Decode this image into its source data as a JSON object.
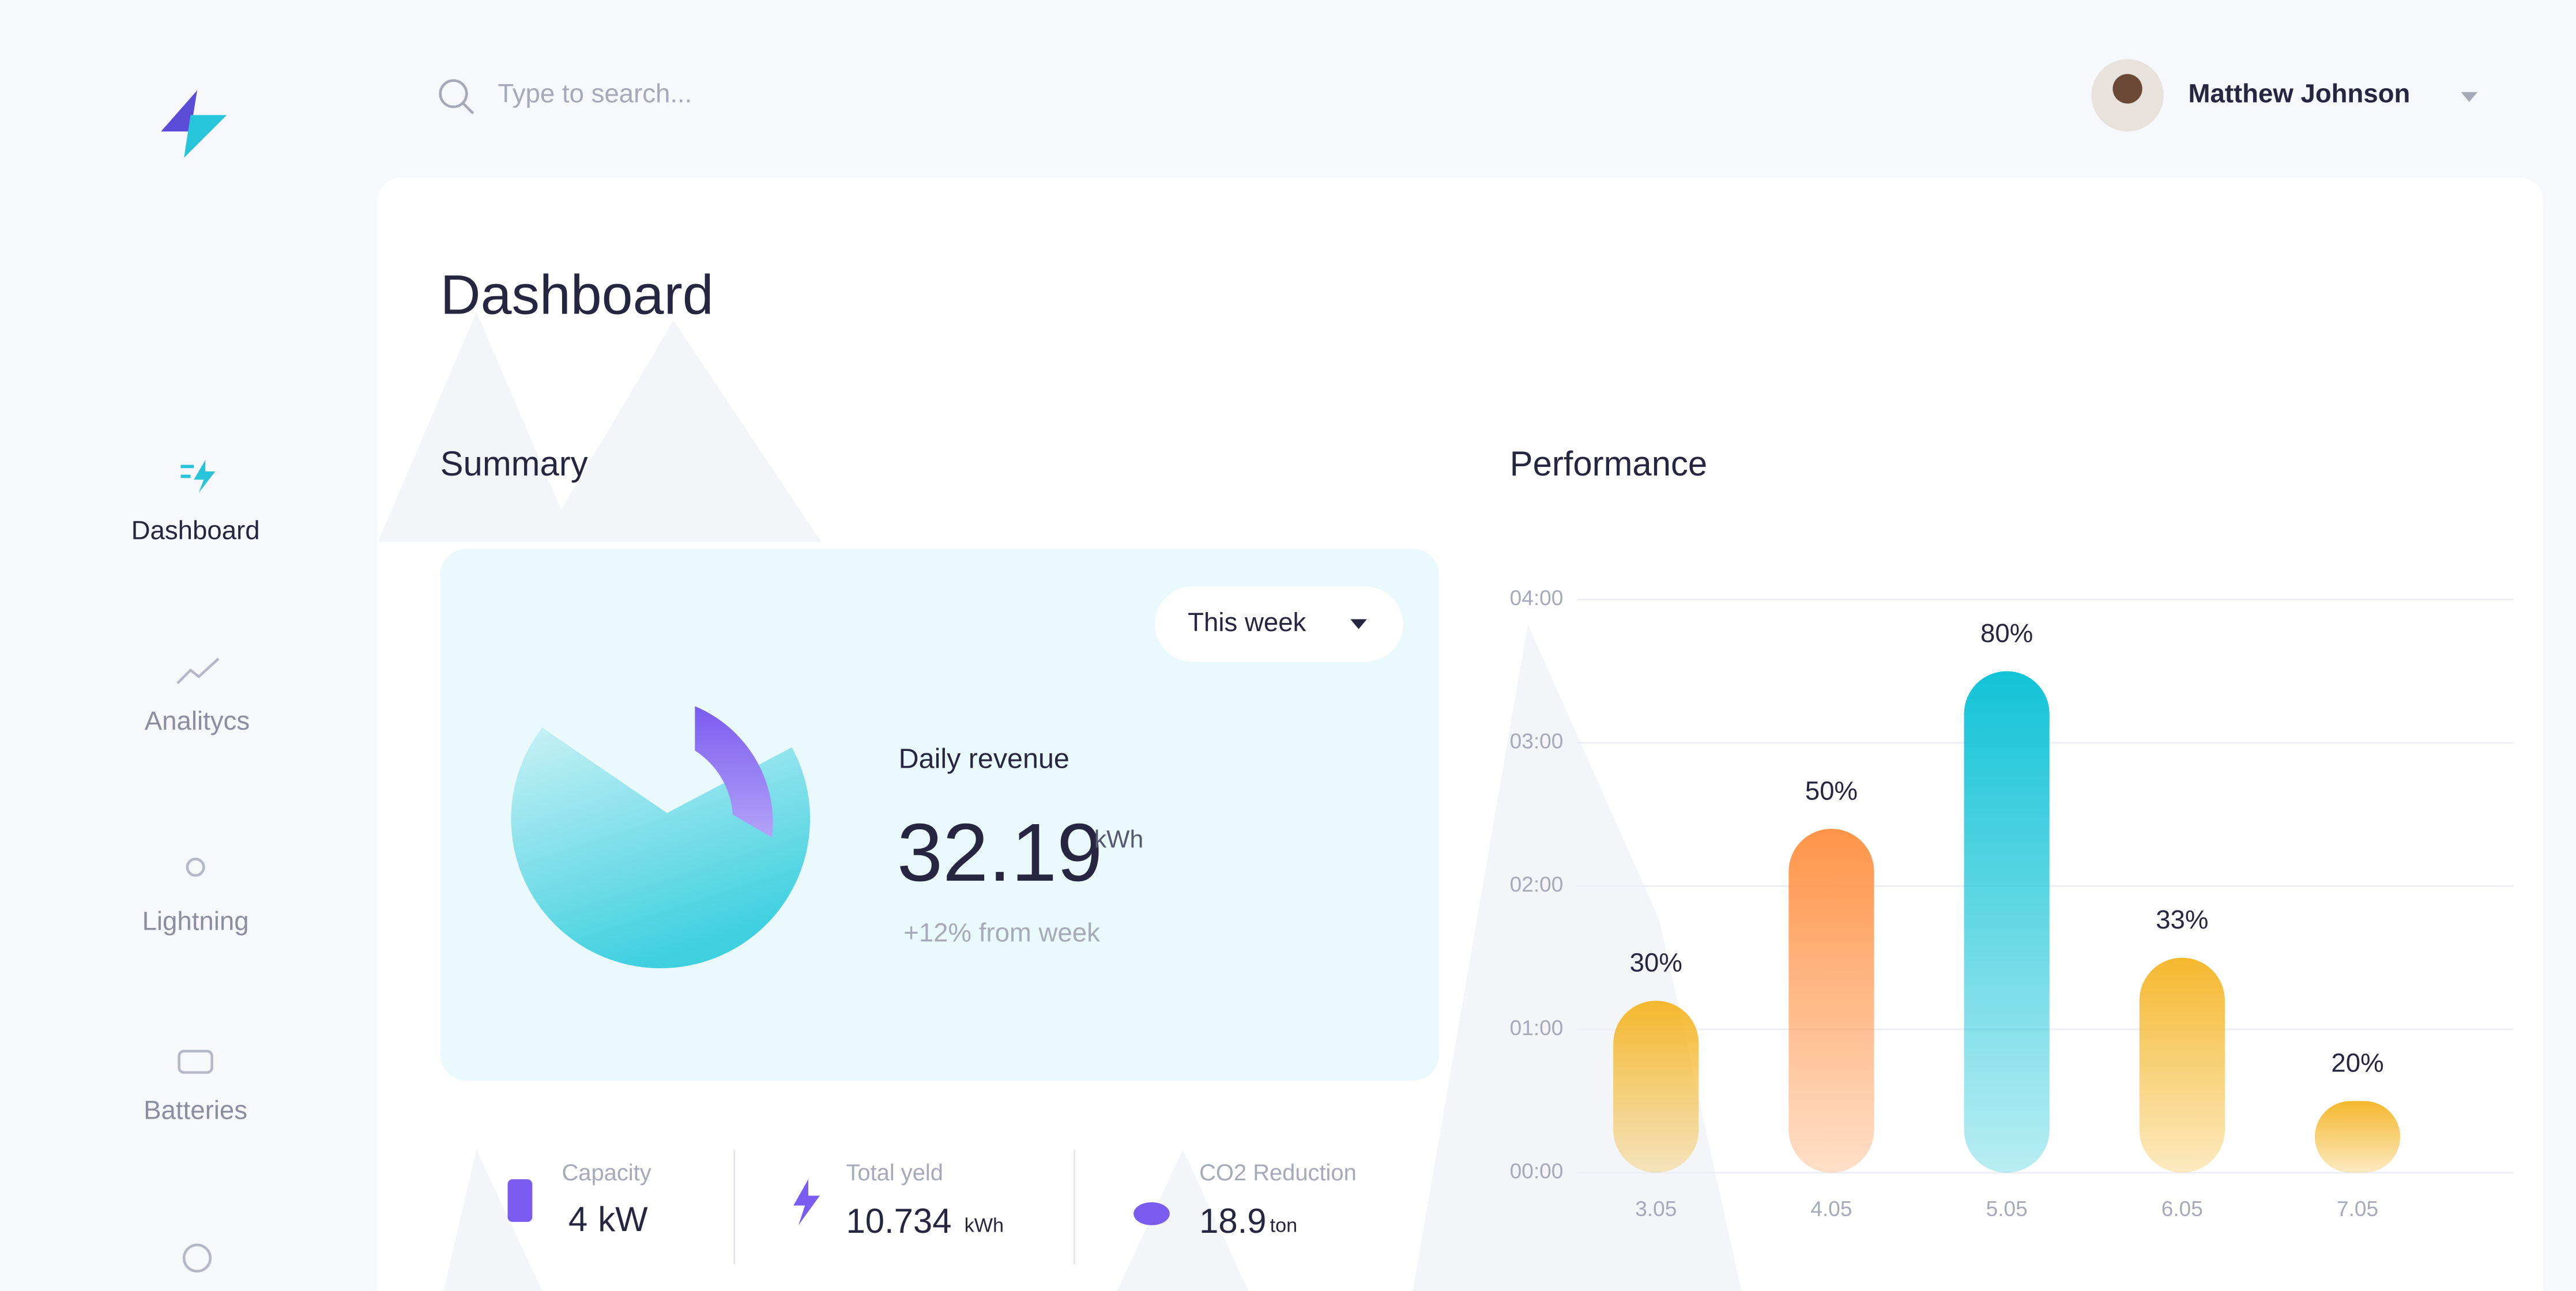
{
  "header": {
    "search_placeholder": "Type to search...",
    "user_name": "Matthew Johnson"
  },
  "sidebar": {
    "items": [
      "Dashboard",
      "Analitycs",
      "Lightning",
      "Batteries"
    ]
  },
  "main": {
    "title": "Dashboard"
  },
  "summary": {
    "title": "Summary",
    "period": "This week",
    "revenue_label": "Daily revenue",
    "revenue_value": 32.19,
    "revenue_unit": "kWh",
    "revenue_change": "+12% from week",
    "stats": [
      {
        "label": "Capacity",
        "value": 4,
        "unit": "kW"
      },
      {
        "label": "Total yeld",
        "value": 10.734,
        "unit": "kWh"
      },
      {
        "label": "CO2 Reduction",
        "value": 18.9,
        "unit": "ton"
      }
    ]
  },
  "performance": {
    "type": "bar",
    "title": "Performance",
    "categories": [
      "3.05",
      "4.05",
      "5.05",
      "6.05",
      "7.05"
    ],
    "values": [
      1.2,
      2.4,
      3.5,
      1.5,
      0.5
    ],
    "bar_labels": [
      "30%",
      "50%",
      "80%",
      "33%",
      "20%"
    ],
    "colors": [
      "#f5b82e",
      "#ff9448",
      "#12c3d7",
      "#f5b82e",
      "#f5b82e"
    ],
    "ylim": [
      0,
      4
    ],
    "yticks": [
      {
        "value": 0,
        "label": "00:00"
      },
      {
        "value": 1,
        "label": "01:00"
      },
      {
        "value": 2,
        "label": "02:00"
      },
      {
        "value": 3,
        "label": "03:00"
      },
      {
        "value": 4,
        "label": "04:00"
      }
    ],
    "grid": true
  }
}
